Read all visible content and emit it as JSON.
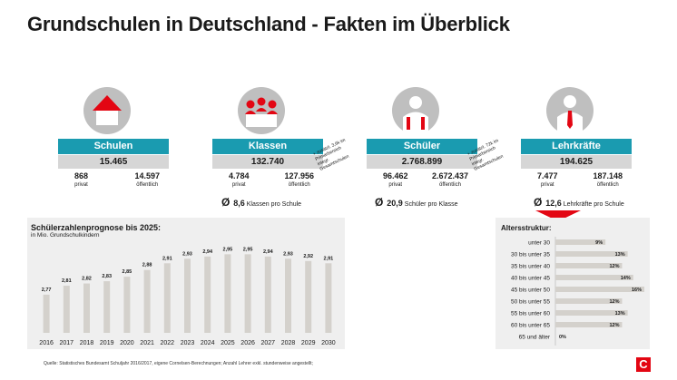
{
  "title": "Grundschulen in Deutschland - Fakten im Überblick",
  "colors": {
    "teal": "#1a9bb0",
    "red": "#e30613",
    "grey": "#bfbfbf",
    "bar": "#d4d1cc"
  },
  "cards": [
    {
      "icon": "school-icon",
      "label": "Schulen",
      "total": "15.465",
      "privat_value": "868",
      "privat_label": "privat",
      "oeffentlich_value": "14.597",
      "oeffentlich_label": "öffentlich"
    },
    {
      "icon": "class-icon",
      "label": "Klassen",
      "total": "132.740",
      "privat_value": "4.784",
      "privat_label": "privat",
      "oeffentlich_value": "127.956",
      "oeffentlich_label": "öffentlich",
      "note": "+ zusätzl. 3,6k im Primarbereich integr. Gesamtschulen"
    },
    {
      "icon": "student-icon",
      "label": "Schüler",
      "total": "2.768.899",
      "privat_value": "96.462",
      "privat_label": "privat",
      "oeffentlich_value": "2.672.437",
      "oeffentlich_label": "öffentlich",
      "note": "+ zusätzl. 72k im Primarbereich integr. Gesamtschulen"
    },
    {
      "icon": "teacher-icon",
      "label": "Lehrkräfte",
      "total": "194.625",
      "privat_value": "7.477",
      "privat_label": "privat",
      "oeffentlich_value": "187.148",
      "oeffentlich_label": "öffentlich"
    }
  ],
  "averages": [
    {
      "symbol": "Ø",
      "value": "8,6",
      "text": "Klassen pro Schule"
    },
    {
      "symbol": "Ø",
      "value": "20,9",
      "text": "Schüler pro Klasse"
    },
    {
      "symbol": "Ø",
      "value": "12,6",
      "text": "Lehrkräfte pro Schule"
    }
  ],
  "chart_data": [
    {
      "type": "bar",
      "title": "Schülerzahlenprognose bis 2025:",
      "subtitle": "in Mio. Grundschulkindern",
      "categories": [
        "2016",
        "2017",
        "2018",
        "2019",
        "2020",
        "2021",
        "2022",
        "2023",
        "2024",
        "2025",
        "2026",
        "2027",
        "2028",
        "2029",
        "2030"
      ],
      "values": [
        2.77,
        2.81,
        2.82,
        2.83,
        2.85,
        2.88,
        2.91,
        2.93,
        2.94,
        2.95,
        2.95,
        2.94,
        2.93,
        2.92,
        2.91
      ],
      "labels": [
        "2,77",
        "2,81",
        "2,82",
        "2,83",
        "2,85",
        "2,88",
        "2,91",
        "2,93",
        "2,94",
        "2,95",
        "2,95",
        "2,94",
        "2,93",
        "2,92",
        "2,91"
      ],
      "ylim": [
        2.6,
        3.0
      ],
      "xlabel": "",
      "ylabel": ""
    },
    {
      "type": "bar",
      "orientation": "horizontal",
      "title": "Altersstruktur:",
      "categories": [
        "unter 30",
        "30 bis unter 35",
        "35 bis unter 40",
        "40 bis unter 45",
        "45 bis unter 50",
        "50 bis unter 55",
        "55 bis unter 60",
        "60 bis unter 65",
        "65 und älter"
      ],
      "values": [
        9,
        13,
        12,
        14,
        16,
        12,
        13,
        12,
        0
      ],
      "labels": [
        "9%",
        "13%",
        "12%",
        "14%",
        "16%",
        "12%",
        "13%",
        "12%",
        "0%"
      ],
      "xlim": [
        0,
        16
      ]
    }
  ],
  "source": "Quelle: Statistisches Bundesamt Schuljahr 2016/2017, eigene Cornelsen-Berechnungen; Anzahl Lehrer exkl. stundenweise angestellt;",
  "logo": "C"
}
